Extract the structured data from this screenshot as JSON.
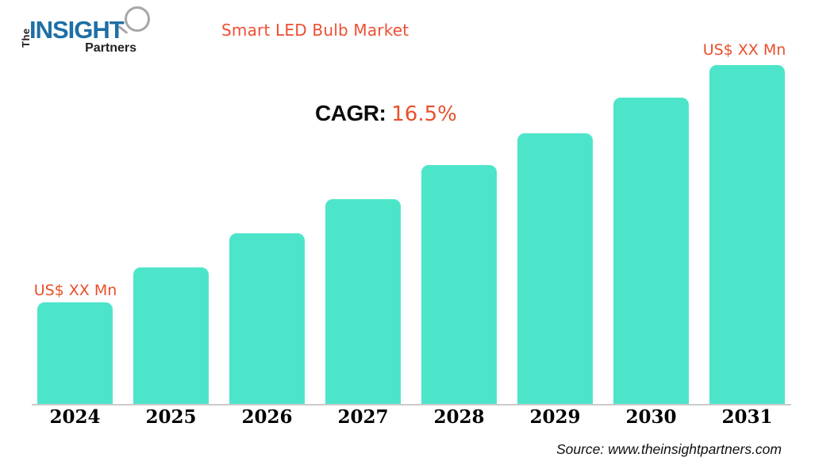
{
  "logo": {
    "the": "The",
    "insight": "INSIGHT",
    "partners": "Partners",
    "blue": "#1e6fa5",
    "dark": "#231f20"
  },
  "header": {
    "title": "Smart LED Bulb Market"
  },
  "cagr": {
    "label": "CAGR:",
    "value": "16.5%"
  },
  "annotations": {
    "first_bar_label": "US$ XX Mn",
    "last_bar_label": "US$ XX Mn"
  },
  "source": {
    "text": "Source: www.theinsightpartners.com"
  },
  "colors": {
    "accent_orange": "#ee4f33",
    "bar": "#4de5ca",
    "axis_line": "#cbcbcb",
    "tick_text": "#000000"
  },
  "chart_data": {
    "type": "bar",
    "title": "Smart LED Bulb Market",
    "xlabel": "",
    "ylabel": "",
    "categories": [
      "2024",
      "2025",
      "2026",
      "2027",
      "2028",
      "2029",
      "2030",
      "2031"
    ],
    "values": [
      "XX",
      "XX",
      "XX",
      "XX",
      "XX",
      "XX",
      "XX",
      "XX"
    ],
    "values_unit": "US$ Mn",
    "values_masked": true,
    "values_pct_of_max": [
      30,
      40.3,
      50.4,
      60.4,
      70.5,
      79.9,
      90.4,
      100
    ],
    "cagr_pct": 16.5,
    "bar_color": "#4de5ca",
    "grid": false,
    "legend": "none",
    "bar_value_annotations": [
      {
        "category": "2024",
        "label": "US$ XX Mn"
      },
      {
        "category": "2031",
        "label": "US$ XX Mn"
      }
    ]
  }
}
